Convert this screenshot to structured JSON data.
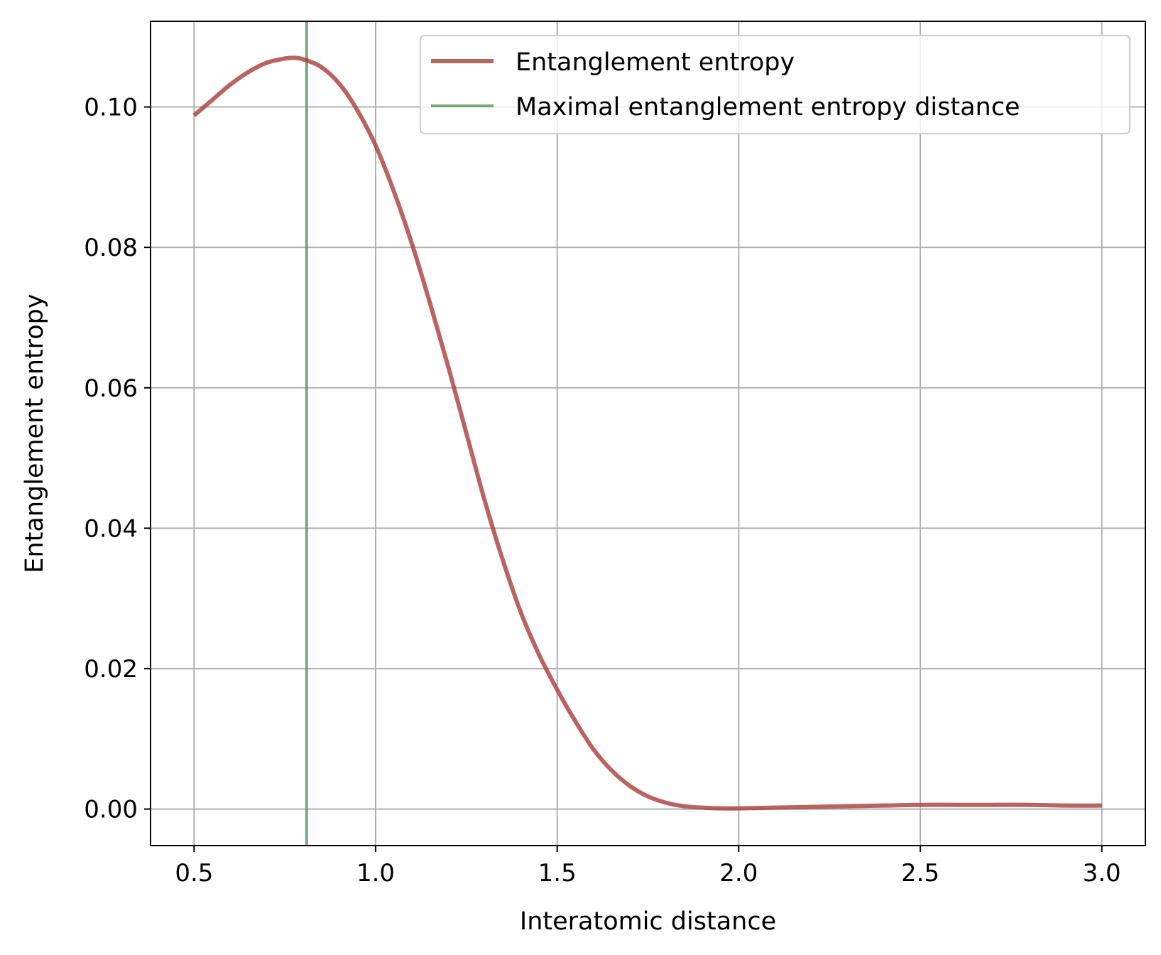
{
  "chart_data": {
    "type": "line",
    "xlabel": "Interatomic distance",
    "ylabel": "Entanglement entropy",
    "xlim": [
      0.38,
      3.12
    ],
    "ylim": [
      -0.0052,
      0.1122
    ],
    "xticks": [
      0.5,
      1.0,
      1.5,
      2.0,
      2.5,
      3.0
    ],
    "xtick_labels": [
      "0.5",
      "1.0",
      "1.5",
      "2.0",
      "2.5",
      "3.0"
    ],
    "yticks": [
      0.0,
      0.02,
      0.04,
      0.06,
      0.08,
      0.1
    ],
    "ytick_labels": [
      "0.00",
      "0.02",
      "0.04",
      "0.06",
      "0.08",
      "0.10"
    ],
    "grid": true,
    "legend_position": "top-right",
    "series": [
      {
        "name": "Entanglement entropy",
        "color": "#a83c3c",
        "x": [
          0.5,
          0.55,
          0.6,
          0.65,
          0.7,
          0.75,
          0.775,
          0.8,
          0.85,
          0.9,
          0.95,
          1.0,
          1.05,
          1.1,
          1.15,
          1.2,
          1.25,
          1.3,
          1.35,
          1.4,
          1.45,
          1.5,
          1.55,
          1.6,
          1.65,
          1.7,
          1.75,
          1.8,
          1.85,
          1.9,
          1.95,
          2.0,
          2.1,
          2.2,
          2.3,
          2.4,
          2.5,
          2.6,
          2.7,
          2.8,
          2.9,
          3.0
        ],
        "y": [
          0.0988,
          0.101,
          0.1032,
          0.105,
          0.1063,
          0.1069,
          0.107,
          0.1068,
          0.1057,
          0.1033,
          0.0995,
          0.0945,
          0.088,
          0.0805,
          0.072,
          0.063,
          0.0535,
          0.044,
          0.0355,
          0.028,
          0.022,
          0.017,
          0.0125,
          0.0085,
          0.0055,
          0.0033,
          0.0018,
          0.0009,
          0.0004,
          0.0002,
          0.0001,
          0.0001,
          0.0002,
          0.0003,
          0.0004,
          0.0005,
          0.0006,
          0.0006,
          0.0006,
          0.0006,
          0.0005,
          0.0005
        ]
      },
      {
        "name": "Maximal entanglement entropy distance",
        "color": "#4f8f4f",
        "type": "vline",
        "x": 0.81
      }
    ]
  }
}
